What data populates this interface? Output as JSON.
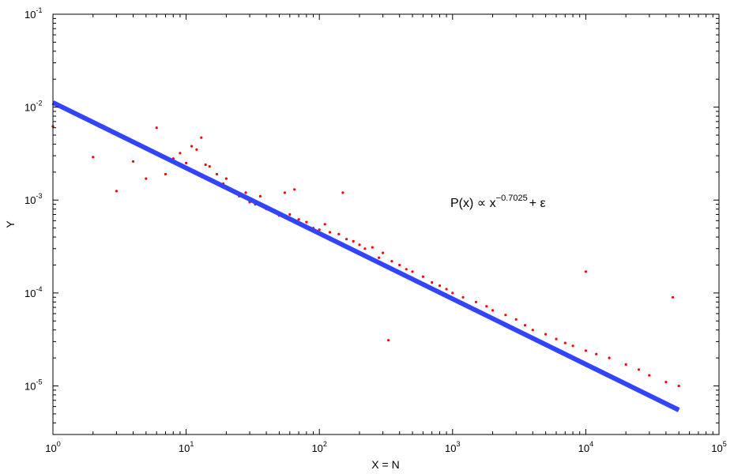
{
  "chart_data": {
    "type": "scatter",
    "title": "",
    "xlabel": "X = N",
    "ylabel": "Y",
    "xscale": "log",
    "yscale": "log",
    "xlim": [
      1,
      100000
    ],
    "ylim": [
      3e-06,
      0.1
    ],
    "grid": false,
    "legend": "none",
    "x_ticks": [
      {
        "base": "10",
        "exp": "0",
        "value": 1
      },
      {
        "base": "10",
        "exp": "1",
        "value": 10
      },
      {
        "base": "10",
        "exp": "2",
        "value": 100
      },
      {
        "base": "10",
        "exp": "3",
        "value": 1000
      },
      {
        "base": "10",
        "exp": "4",
        "value": 10000
      },
      {
        "base": "10",
        "exp": "5",
        "value": 100000
      }
    ],
    "y_ticks": [
      {
        "base": "10",
        "exp": "-5",
        "value": 1e-05
      },
      {
        "base": "10",
        "exp": "-4",
        "value": 0.0001
      },
      {
        "base": "10",
        "exp": "-3",
        "value": 0.001
      },
      {
        "base": "10",
        "exp": "-2",
        "value": 0.01
      },
      {
        "base": "10",
        "exp": "-1",
        "value": 0.1
      }
    ],
    "series": [
      {
        "kind": "scatter",
        "color": "#ff0000",
        "points": [
          [
            1,
            0.0062
          ],
          [
            2,
            0.0029
          ],
          [
            3,
            0.00125
          ],
          [
            4,
            0.0026
          ],
          [
            5,
            0.0017
          ],
          [
            6,
            0.006
          ],
          [
            7,
            0.0019
          ],
          [
            8,
            0.0028
          ],
          [
            9,
            0.0032
          ],
          [
            10,
            0.0025
          ],
          [
            11,
            0.0038
          ],
          [
            12,
            0.0035
          ],
          [
            13,
            0.0047
          ],
          [
            14,
            0.0024
          ],
          [
            15,
            0.0023
          ],
          [
            17,
            0.0019
          ],
          [
            19,
            0.0015
          ],
          [
            20,
            0.0017
          ],
          [
            22,
            0.0013
          ],
          [
            25,
            0.0011
          ],
          [
            28,
            0.0012
          ],
          [
            30,
            0.00095
          ],
          [
            33,
            0.0009
          ],
          [
            36,
            0.0011
          ],
          [
            40,
            0.0008
          ],
          [
            45,
            0.00075
          ],
          [
            50,
            0.00068
          ],
          [
            55,
            0.0012
          ],
          [
            60,
            0.0007
          ],
          [
            65,
            0.0013
          ],
          [
            70,
            0.00062
          ],
          [
            80,
            0.00058
          ],
          [
            90,
            0.0005
          ],
          [
            100,
            0.00048
          ],
          [
            110,
            0.00055
          ],
          [
            120,
            0.00045
          ],
          [
            140,
            0.00043
          ],
          [
            150,
            0.0012
          ],
          [
            160,
            0.00038
          ],
          [
            180,
            0.00036
          ],
          [
            200,
            0.00033
          ],
          [
            220,
            0.0003
          ],
          [
            250,
            0.00031
          ],
          [
            280,
            0.00024
          ],
          [
            300,
            0.00027
          ],
          [
            330,
            3.1e-05
          ],
          [
            350,
            0.00022
          ],
          [
            400,
            0.0002
          ],
          [
            450,
            0.00018
          ],
          [
            500,
            0.00017
          ],
          [
            600,
            0.00015
          ],
          [
            700,
            0.00013
          ],
          [
            800,
            0.00012
          ],
          [
            900,
            0.00011
          ],
          [
            1000,
            0.0001
          ],
          [
            1200,
            9e-05
          ],
          [
            1500,
            8e-05
          ],
          [
            1800,
            7.2e-05
          ],
          [
            2000,
            6.5e-05
          ],
          [
            2500,
            5.8e-05
          ],
          [
            3000,
            5.2e-05
          ],
          [
            3500,
            4.5e-05
          ],
          [
            4000,
            4e-05
          ],
          [
            5000,
            3.6e-05
          ],
          [
            6000,
            3.2e-05
          ],
          [
            7000,
            2.9e-05
          ],
          [
            8000,
            2.7e-05
          ],
          [
            10000,
            2.4e-05
          ],
          [
            10000,
            0.00017
          ],
          [
            12000,
            2.2e-05
          ],
          [
            15000,
            2e-05
          ],
          [
            20000,
            1.7e-05
          ],
          [
            25000,
            1.5e-05
          ],
          [
            30000,
            1.3e-05
          ],
          [
            40000,
            1.1e-05
          ],
          [
            45000,
            9e-05
          ],
          [
            50000,
            1e-05
          ]
        ]
      },
      {
        "kind": "line",
        "color": "#3344ff",
        "points": [
          [
            1,
            0.0112
          ],
          [
            50000,
            5.5e-06
          ]
        ]
      }
    ],
    "annotations": [
      {
        "text_main": "P(x) ∝ x",
        "text_sup": "−0.7025",
        "text_tail": "+ ε",
        "x": 2200,
        "y": 0.00085
      }
    ]
  }
}
